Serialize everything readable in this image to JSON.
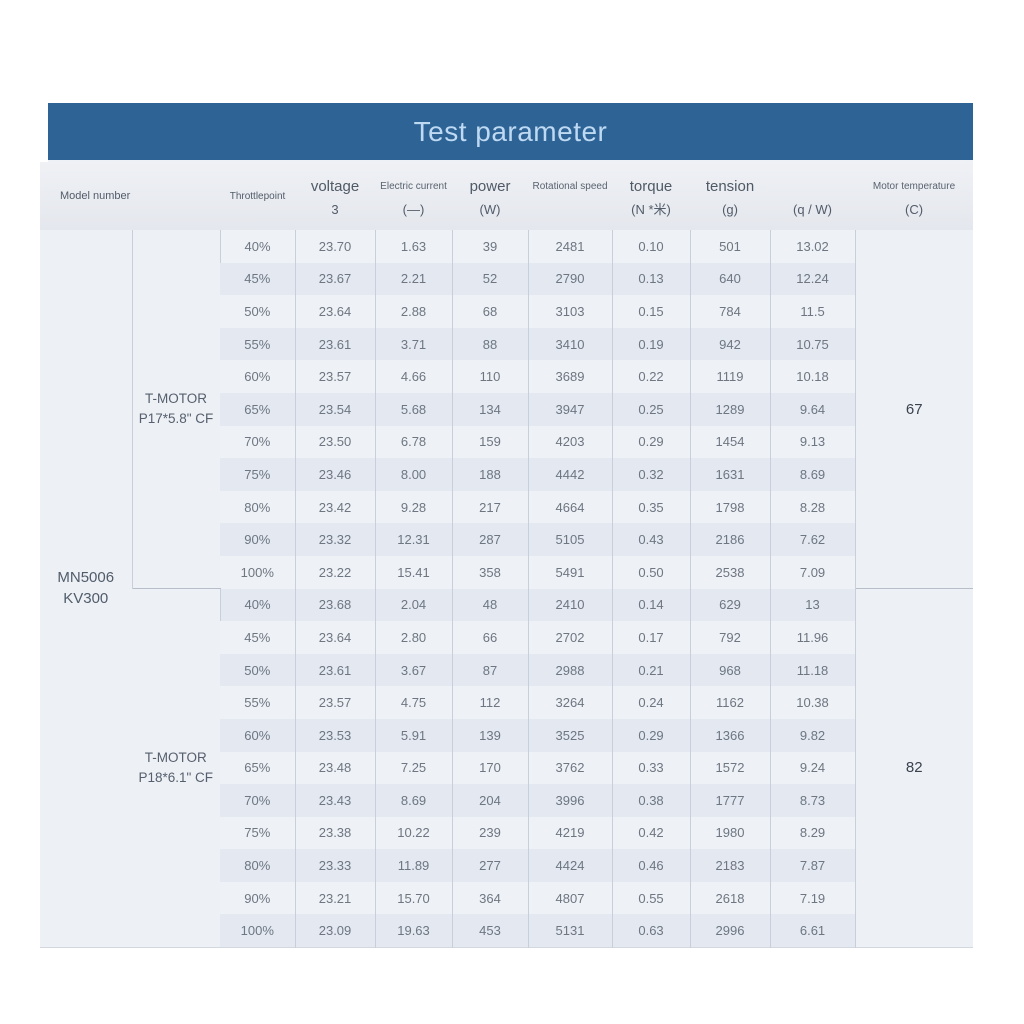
{
  "title": "Test parameter",
  "colors": {
    "title_bar": "#2e6396",
    "title_text": "#bed9f2",
    "header_bg": "#e8ebf0",
    "stripe_light": "#eef1f6",
    "stripe_dark": "#e3e8f1",
    "side_column_bg": "#edf0f5",
    "grid_line": "#c9cfda",
    "value_text": "#6d7681"
  },
  "table": {
    "header": {
      "model_label": "Model number",
      "throttle_label": "Throttlepoint",
      "columns": [
        {
          "label": "voltage",
          "unit": "3",
          "size": "big"
        },
        {
          "label": "Electric current",
          "unit": "(—)",
          "size": "small"
        },
        {
          "label": "power",
          "unit": "(W)",
          "size": "big"
        },
        {
          "label": "Rotational speed",
          "unit": "",
          "size": "small"
        },
        {
          "label": "torque",
          "unit": "(N *米)",
          "size": "big"
        },
        {
          "label": "tension",
          "unit": "(g)",
          "size": "big"
        },
        {
          "label": "",
          "unit": "(q / W)",
          "size": "big"
        },
        {
          "label": "Motor temperature",
          "unit": "(C)",
          "size": "small"
        }
      ]
    },
    "model_number": [
      "MN5006",
      "KV300"
    ],
    "groups": [
      {
        "propeller": [
          "T-MOTOR",
          "P17*5.8\" CF"
        ],
        "temperature": "67",
        "rows": [
          [
            "40%",
            "23.70",
            "1.63",
            "39",
            "2481",
            "0.10",
            "501",
            "13.02"
          ],
          [
            "45%",
            "23.67",
            "2.21",
            "52",
            "2790",
            "0.13",
            "640",
            "12.24"
          ],
          [
            "50%",
            "23.64",
            "2.88",
            "68",
            "3103",
            "0.15",
            "784",
            "11.5"
          ],
          [
            "55%",
            "23.61",
            "3.71",
            "88",
            "3410",
            "0.19",
            "942",
            "10.75"
          ],
          [
            "60%",
            "23.57",
            "4.66",
            "110",
            "3689",
            "0.22",
            "1119",
            "10.18"
          ],
          [
            "65%",
            "23.54",
            "5.68",
            "134",
            "3947",
            "0.25",
            "1289",
            "9.64"
          ],
          [
            "70%",
            "23.50",
            "6.78",
            "159",
            "4203",
            "0.29",
            "1454",
            "9.13"
          ],
          [
            "75%",
            "23.46",
            "8.00",
            "188",
            "4442",
            "0.32",
            "1631",
            "8.69"
          ],
          [
            "80%",
            "23.42",
            "9.28",
            "217",
            "4664",
            "0.35",
            "1798",
            "8.28"
          ],
          [
            "90%",
            "23.32",
            "12.31",
            "287",
            "5105",
            "0.43",
            "2186",
            "7.62"
          ],
          [
            "100%",
            "23.22",
            "15.41",
            "358",
            "5491",
            "0.50",
            "2538",
            "7.09"
          ]
        ]
      },
      {
        "propeller": [
          "T-MOTOR",
          "P18*6.1\" CF"
        ],
        "temperature": "82",
        "rows": [
          [
            "40%",
            "23.68",
            "2.04",
            "48",
            "2410",
            "0.14",
            "629",
            "13"
          ],
          [
            "45%",
            "23.64",
            "2.80",
            "66",
            "2702",
            "0.17",
            "792",
            "11.96"
          ],
          [
            "50%",
            "23.61",
            "3.67",
            "87",
            "2988",
            "0.21",
            "968",
            "11.18"
          ],
          [
            "55%",
            "23.57",
            "4.75",
            "112",
            "3264",
            "0.24",
            "1162",
            "10.38"
          ],
          [
            "60%",
            "23.53",
            "5.91",
            "139",
            "3525",
            "0.29",
            "1366",
            "9.82"
          ],
          [
            "65%",
            "23.48",
            "7.25",
            "170",
            "3762",
            "0.33",
            "1572",
            "9.24"
          ],
          [
            "70%",
            "23.43",
            "8.69",
            "204",
            "3996",
            "0.38",
            "1777",
            "8.73"
          ],
          [
            "75%",
            "23.38",
            "10.22",
            "239",
            "4219",
            "0.42",
            "1980",
            "8.29"
          ],
          [
            "80%",
            "23.33",
            "11.89",
            "277",
            "4424",
            "0.46",
            "2183",
            "7.87"
          ],
          [
            "90%",
            "23.21",
            "15.70",
            "364",
            "4807",
            "0.55",
            "2618",
            "7.19"
          ],
          [
            "100%",
            "23.09",
            "19.63",
            "453",
            "5131",
            "0.63",
            "2996",
            "6.61"
          ]
        ]
      }
    ]
  }
}
